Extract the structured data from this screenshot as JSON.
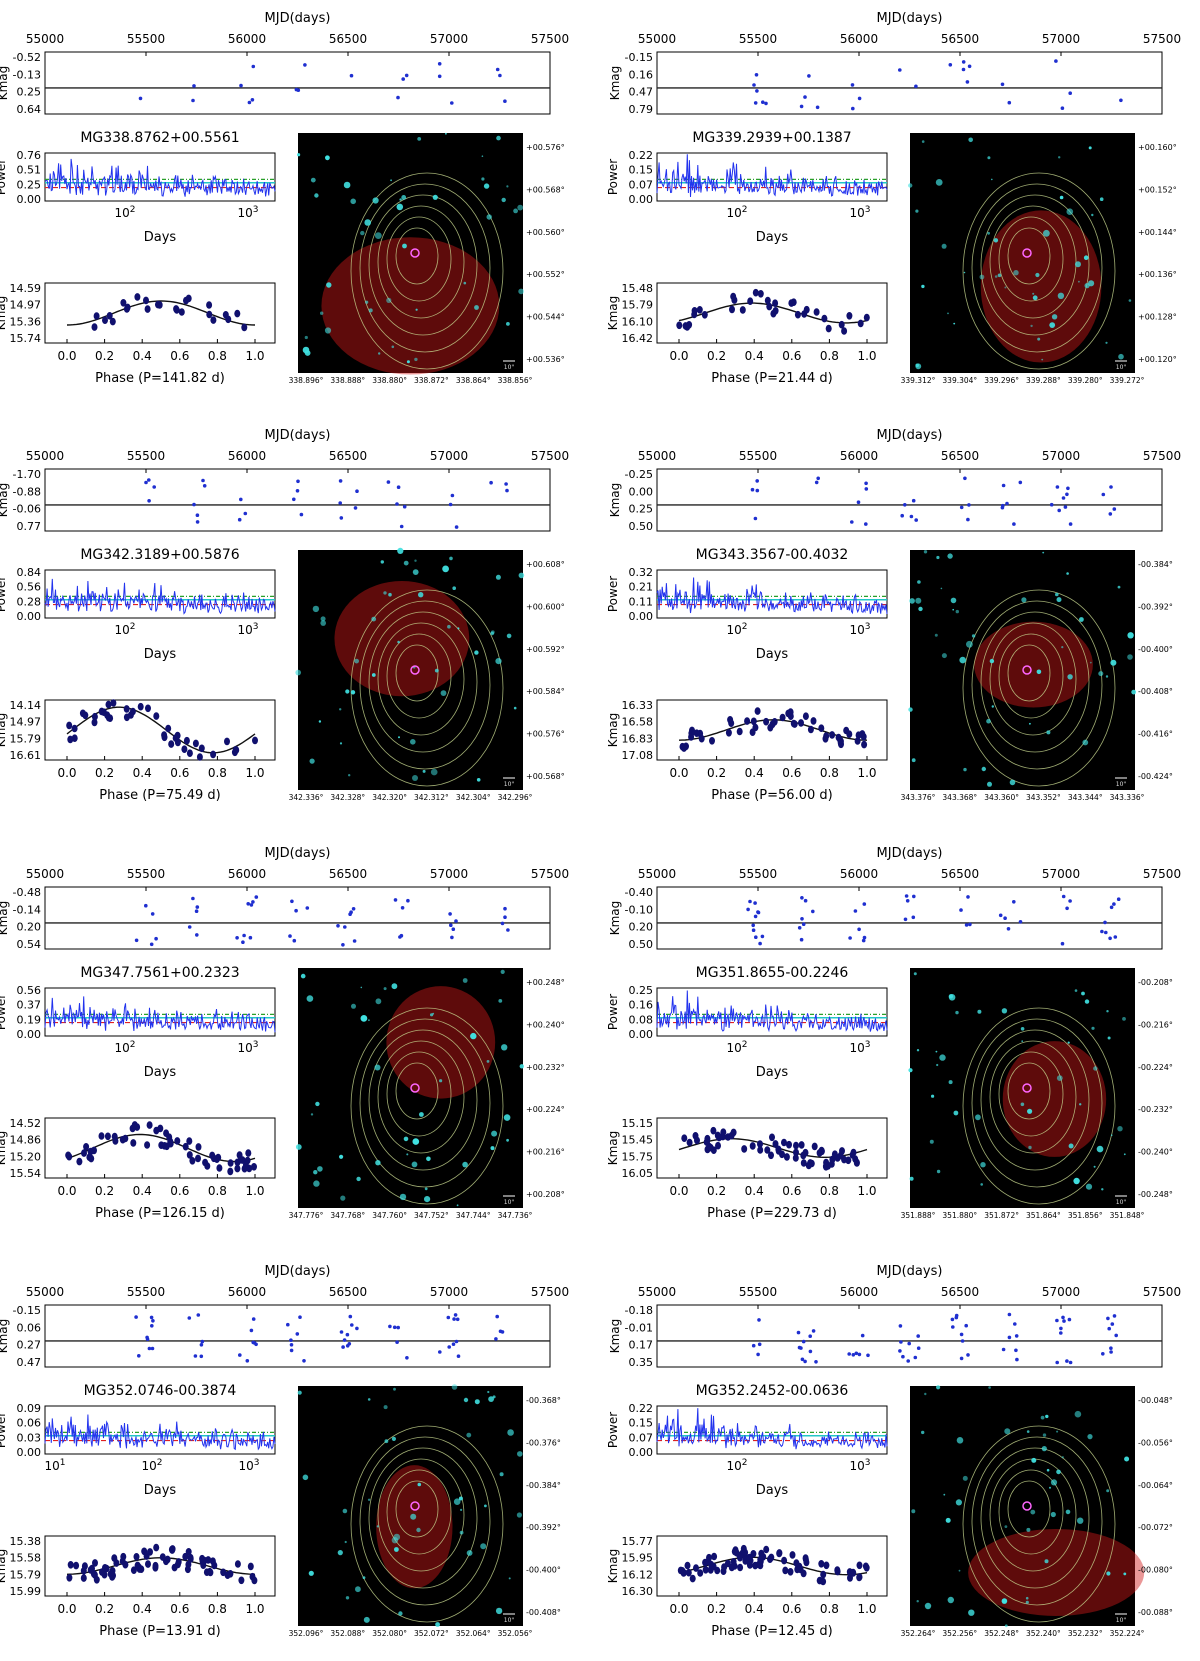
{
  "figure_labels": {
    "mjd_axis_title": "MJD(days)",
    "kmag_label": "Kmag",
    "power_label": "Power",
    "days_label": "Days",
    "scale_bar": "10\""
  },
  "colors": {
    "points": "#1f2fd0",
    "fold_points": "#10106e",
    "periodogram": "#2233ee",
    "fit_curve": "#111111",
    "threshold_cyan": "#22c7c7",
    "threshold_green": "#2aa02a",
    "threshold_red": "#e02020",
    "image_bg": "#000000",
    "star_cyan": "#40e0e0",
    "emission_red": "#d01818",
    "contour": "#c8d890"
  },
  "chart_data": [
    {
      "id": "MG338.8762+00.5561",
      "title": "MG338.8762+00.5561",
      "mjd_ticks": [
        "55000",
        "55500",
        "56000",
        "56500",
        "57000",
        "57500"
      ],
      "kmag_ticks": [
        "-0.52",
        "-0.13",
        "0.25",
        "0.64"
      ],
      "power_ticks": [
        "0.76",
        "0.51",
        "0.25",
        "0.00"
      ],
      "periodogram_ticks": [
        "10^2",
        "10^3"
      ],
      "fold_ticks": [
        "14.59",
        "14.97",
        "15.36",
        "15.74"
      ],
      "phase_ticks": [
        "0.0",
        "0.2",
        "0.4",
        "0.6",
        "0.8",
        "1.0"
      ],
      "phase_label": "Phase (P=141.82 d)",
      "ra_ticks": [
        "338.896°",
        "338.888°",
        "338.880°",
        "338.872°",
        "338.864°",
        "338.856°"
      ],
      "dec_ticks": [
        "+00.576°",
        "+00.568°",
        "+00.560°",
        "+00.552°",
        "+00.544°",
        "+00.536°"
      ],
      "amplitude": 0.32
    },
    {
      "id": "MG339.2939+00.1387",
      "title": "MG339.2939+00.1387",
      "mjd_ticks": [
        "55000",
        "55500",
        "56000",
        "56500",
        "57000",
        "57500"
      ],
      "kmag_ticks": [
        "-0.15",
        "0.16",
        "0.47",
        "0.79"
      ],
      "power_ticks": [
        "0.22",
        "0.15",
        "0.07",
        "0.00"
      ],
      "periodogram_ticks": [
        "10^2",
        "10^3"
      ],
      "fold_ticks": [
        "15.48",
        "15.79",
        "16.10",
        "16.42"
      ],
      "phase_ticks": [
        "0.0",
        "0.2",
        "0.4",
        "0.6",
        "0.8",
        "1.0"
      ],
      "phase_label": "Phase (P=21.44 d)",
      "ra_ticks": [
        "339.312°",
        "339.304°",
        "339.296°",
        "339.288°",
        "339.280°",
        "339.272°"
      ],
      "dec_ticks": [
        "+00.160°",
        "+00.152°",
        "+00.144°",
        "+00.136°",
        "+00.128°",
        "+00.120°"
      ],
      "amplitude": 0.18
    },
    {
      "id": "MG342.3189+00.5876",
      "title": "MG342.3189+00.5876",
      "mjd_ticks": [
        "55000",
        "55500",
        "56000",
        "56500",
        "57000",
        "57500"
      ],
      "kmag_ticks": [
        "-1.70",
        "-0.88",
        "-0.06",
        "0.77"
      ],
      "power_ticks": [
        "0.84",
        "0.56",
        "0.28",
        "0.00"
      ],
      "periodogram_ticks": [
        "10^2",
        "10^3"
      ],
      "fold_ticks": [
        "14.14",
        "14.97",
        "15.79",
        "16.61"
      ],
      "phase_ticks": [
        "0.0",
        "0.2",
        "0.4",
        "0.6",
        "0.8",
        "1.0"
      ],
      "phase_label": "Phase (P=75.49 d)",
      "ra_ticks": [
        "342.336°",
        "342.328°",
        "342.320°",
        "342.312°",
        "342.304°",
        "342.296°"
      ],
      "dec_ticks": [
        "+00.608°",
        "+00.600°",
        "+00.592°",
        "+00.584°",
        "+00.576°",
        "+00.568°"
      ],
      "amplitude": 1.1
    },
    {
      "id": "MG343.3567-00.4032",
      "title": "MG343.3567-00.4032",
      "mjd_ticks": [
        "55000",
        "55500",
        "56000",
        "56500",
        "57000",
        "57500"
      ],
      "kmag_ticks": [
        "-0.25",
        "0.00",
        "0.25",
        "0.50"
      ],
      "power_ticks": [
        "0.32",
        "0.21",
        "0.11",
        "0.00"
      ],
      "periodogram_ticks": [
        "10^2",
        "10^3"
      ],
      "fold_ticks": [
        "16.33",
        "16.58",
        "16.83",
        "17.08"
      ],
      "phase_ticks": [
        "0.0",
        "0.2",
        "0.4",
        "0.6",
        "0.8",
        "1.0"
      ],
      "phase_label": "Phase (P=56.00 d)",
      "ra_ticks": [
        "343.376°",
        "343.368°",
        "343.360°",
        "343.352°",
        "343.344°",
        "343.336°"
      ],
      "dec_ticks": [
        "-00.384°",
        "-00.392°",
        "-00.400°",
        "-00.408°",
        "-00.416°",
        "-00.424°"
      ],
      "amplitude": 0.2
    },
    {
      "id": "MG347.7561+00.2323",
      "title": "MG347.7561+00.2323",
      "mjd_ticks": [
        "55000",
        "55500",
        "56000",
        "56500",
        "57000",
        "57500"
      ],
      "kmag_ticks": [
        "-0.48",
        "-0.14",
        "0.20",
        "0.54"
      ],
      "power_ticks": [
        "0.56",
        "0.37",
        "0.19",
        "0.00"
      ],
      "periodogram_ticks": [
        "10^2",
        "10^3"
      ],
      "fold_ticks": [
        "14.52",
        "14.86",
        "15.20",
        "15.54"
      ],
      "phase_ticks": [
        "0.0",
        "0.2",
        "0.4",
        "0.6",
        "0.8",
        "1.0"
      ],
      "phase_label": "Phase (P=126.15 d)",
      "ra_ticks": [
        "347.776°",
        "347.768°",
        "347.760°",
        "347.752°",
        "347.744°",
        "347.736°"
      ],
      "dec_ticks": [
        "+00.248°",
        "+00.240°",
        "+00.232°",
        "+00.224°",
        "+00.216°",
        "+00.208°"
      ],
      "amplitude": 0.42
    },
    {
      "id": "MG351.8655-00.2246",
      "title": "MG351.8655-00.2246",
      "mjd_ticks": [
        "55000",
        "55500",
        "56000",
        "56500",
        "57000",
        "57500"
      ],
      "kmag_ticks": [
        "-0.40",
        "-0.10",
        "0.20",
        "0.50"
      ],
      "power_ticks": [
        "0.25",
        "0.16",
        "0.08",
        "0.00"
      ],
      "periodogram_ticks": [
        "10^2",
        "10^3"
      ],
      "fold_ticks": [
        "15.15",
        "15.45",
        "15.75",
        "16.05"
      ],
      "phase_ticks": [
        "0.0",
        "0.2",
        "0.4",
        "0.6",
        "0.8",
        "1.0"
      ],
      "phase_label": "Phase (P=229.73 d)",
      "ra_ticks": [
        "351.888°",
        "351.880°",
        "351.872°",
        "351.864°",
        "351.856°",
        "351.848°"
      ],
      "dec_ticks": [
        "-00.208°",
        "-00.216°",
        "-00.224°",
        "-00.232°",
        "-00.240°",
        "-00.248°"
      ],
      "amplitude": 0.14
    },
    {
      "id": "MG352.0746-00.3874",
      "title": "MG352.0746-00.3874",
      "mjd_ticks": [
        "55000",
        "55500",
        "56000",
        "56500",
        "57000",
        "57500"
      ],
      "kmag_ticks": [
        "-0.15",
        "0.06",
        "0.27",
        "0.47"
      ],
      "power_ticks": [
        "0.09",
        "0.06",
        "0.03",
        "0.00"
      ],
      "periodogram_ticks": [
        "10^1",
        "10^2",
        "10^3"
      ],
      "fold_ticks": [
        "15.38",
        "15.58",
        "15.79",
        "15.99"
      ],
      "phase_ticks": [
        "0.0",
        "0.2",
        "0.4",
        "0.6",
        "0.8",
        "1.0"
      ],
      "phase_label": "Phase (P=13.91 d)",
      "ra_ticks": [
        "352.096°",
        "352.088°",
        "352.080°",
        "352.072°",
        "352.064°",
        "352.056°"
      ],
      "dec_ticks": [
        "-00.368°",
        "-00.376°",
        "-00.384°",
        "-00.392°",
        "-00.400°",
        "-00.408°"
      ],
      "amplitude": 0.07
    },
    {
      "id": "MG352.2452-00.0636",
      "title": "MG352.2452-00.0636",
      "mjd_ticks": [
        "55000",
        "55500",
        "56000",
        "56500",
        "57000",
        "57500"
      ],
      "kmag_ticks": [
        "-0.18",
        "-0.01",
        "0.17",
        "0.35"
      ],
      "power_ticks": [
        "0.22",
        "0.15",
        "0.07",
        "0.00"
      ],
      "periodogram_ticks": [
        "10^2",
        "10^3"
      ],
      "fold_ticks": [
        "15.77",
        "15.95",
        "16.12",
        "16.30"
      ],
      "phase_ticks": [
        "0.0",
        "0.2",
        "0.4",
        "0.6",
        "0.8",
        "1.0"
      ],
      "phase_label": "Phase (P=12.45 d)",
      "ra_ticks": [
        "352.264°",
        "352.256°",
        "352.248°",
        "352.240°",
        "352.232°",
        "352.224°"
      ],
      "dec_ticks": [
        "-00.048°",
        "-00.056°",
        "-00.064°",
        "-00.072°",
        "-00.080°",
        "-00.088°"
      ],
      "amplitude": 0.1
    }
  ]
}
